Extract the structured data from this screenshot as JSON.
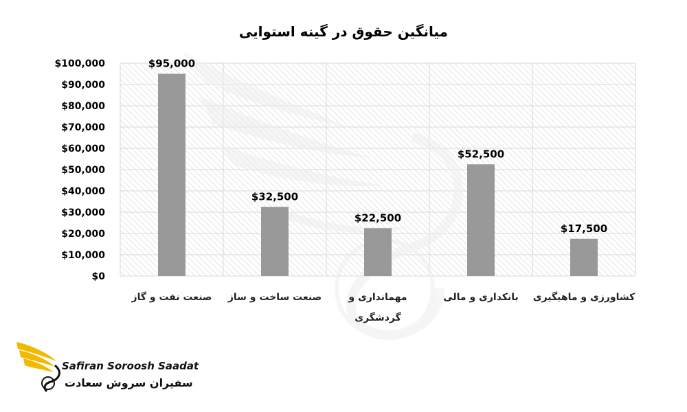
{
  "chart_data": {
    "type": "bar",
    "title": "میانگین حقوق در گینه استوایی",
    "categories": [
      "صنعت نفت و گاز",
      "صنعت ساخت و ساز",
      "مهمانداری و گردشگری",
      "بانکداری و مالی",
      "کشاورزی و ماهیگیری"
    ],
    "values": [
      95000,
      32500,
      22500,
      52500,
      17500
    ],
    "data_labels": [
      "$95,000",
      "$32,500",
      "$22,500",
      "$52,500",
      "$17,500"
    ],
    "y_tick_labels": [
      "$0",
      "$10,000",
      "$20,000",
      "$30,000",
      "$40,000",
      "$50,000",
      "$60,000",
      "$70,000",
      "$80,000",
      "$90,000",
      "$100,000"
    ],
    "ylim": [
      0,
      100000
    ],
    "y_tick_step": 10000,
    "xlabel": "",
    "ylabel": "",
    "grid": true,
    "legend": "none",
    "colors": {
      "bar": "#999999",
      "grid": "#d9d9d9",
      "hatch": "#e6e6e6"
    }
  },
  "logo": {
    "name_en": "Safiran Soroosh Saadat",
    "name_fa": "سفیران سروش سعادت",
    "colors": {
      "wing": "#f2b900",
      "text": "#111111"
    }
  },
  "watermark": {
    "icon": "phoenix-watermark-icon"
  }
}
